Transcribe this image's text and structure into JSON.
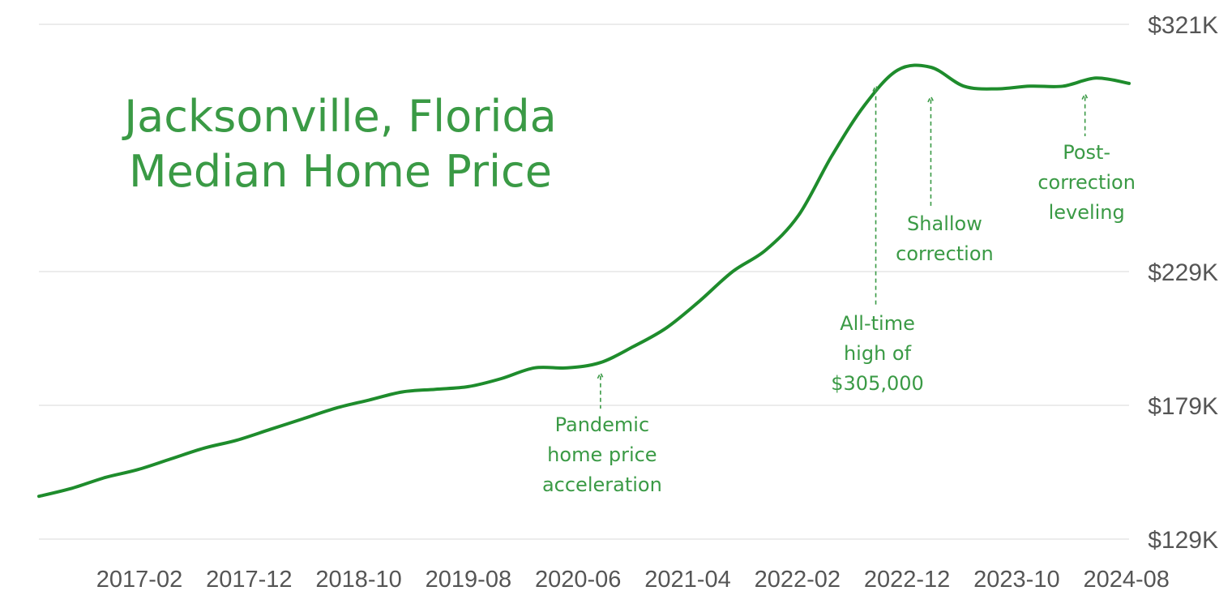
{
  "chart_data": {
    "type": "line",
    "title_lines": [
      "Jacksonville, Florida",
      "Median Home Price"
    ],
    "y_ticks": [
      {
        "value": 129000,
        "label": "$129K"
      },
      {
        "value": 179000,
        "label": "$179K"
      },
      {
        "value": 229000,
        "label": "$229K"
      },
      {
        "value": 321000,
        "label": "$321K"
      }
    ],
    "ylim": [
      129000,
      321000
    ],
    "x_ticks": [
      "2017-02",
      "2017-12",
      "2018-10",
      "2019-08",
      "2020-06",
      "2021-04",
      "2022-02",
      "2022-12",
      "2023-10",
      "2024-08"
    ],
    "xlim": [
      "2016-05",
      "2024-08"
    ],
    "grid": true,
    "colors": {
      "line": "#1e8c2c",
      "text": "#3a9a45",
      "tick": "#555555",
      "grid": "#e6e6e6"
    },
    "series": [
      {
        "x": [
          "2016-05",
          "2016-08",
          "2016-11",
          "2017-02",
          "2017-05",
          "2017-08",
          "2017-11",
          "2018-02",
          "2018-05",
          "2018-08",
          "2018-11",
          "2019-02",
          "2019-05",
          "2019-08",
          "2019-11",
          "2020-02",
          "2020-05",
          "2020-08",
          "2020-11",
          "2021-02",
          "2021-05",
          "2021-08",
          "2021-11",
          "2022-02",
          "2022-05",
          "2022-08",
          "2022-11",
          "2023-02",
          "2023-05",
          "2023-08",
          "2023-11",
          "2024-02",
          "2024-05",
          "2024-08"
        ],
        "values": [
          145000,
          148000,
          152000,
          155000,
          159000,
          163000,
          166000,
          170000,
          174000,
          178000,
          181000,
          184000,
          185000,
          186000,
          189000,
          193000,
          193000,
          195000,
          201000,
          208000,
          218000,
          229000,
          237000,
          250000,
          272000,
          291000,
          304000,
          305000,
          298000,
          297000,
          298000,
          298000,
          301000,
          299000
        ]
      }
    ],
    "annotations": [
      {
        "lines": [
          "Pandemic",
          "home price",
          "acceleration"
        ],
        "x": "2020-08",
        "y": 193000,
        "below": true
      },
      {
        "lines": [
          "All-time",
          "high of",
          "$305,000"
        ],
        "x": "2022-09",
        "y": 300000,
        "below": true
      },
      {
        "lines": [
          "Shallow",
          "correction"
        ],
        "x": "2023-02",
        "y": 296000,
        "below": true
      },
      {
        "lines": [
          "Post-",
          "correction",
          "leveling"
        ],
        "x": "2024-04",
        "y": 297000,
        "below": true
      }
    ]
  }
}
